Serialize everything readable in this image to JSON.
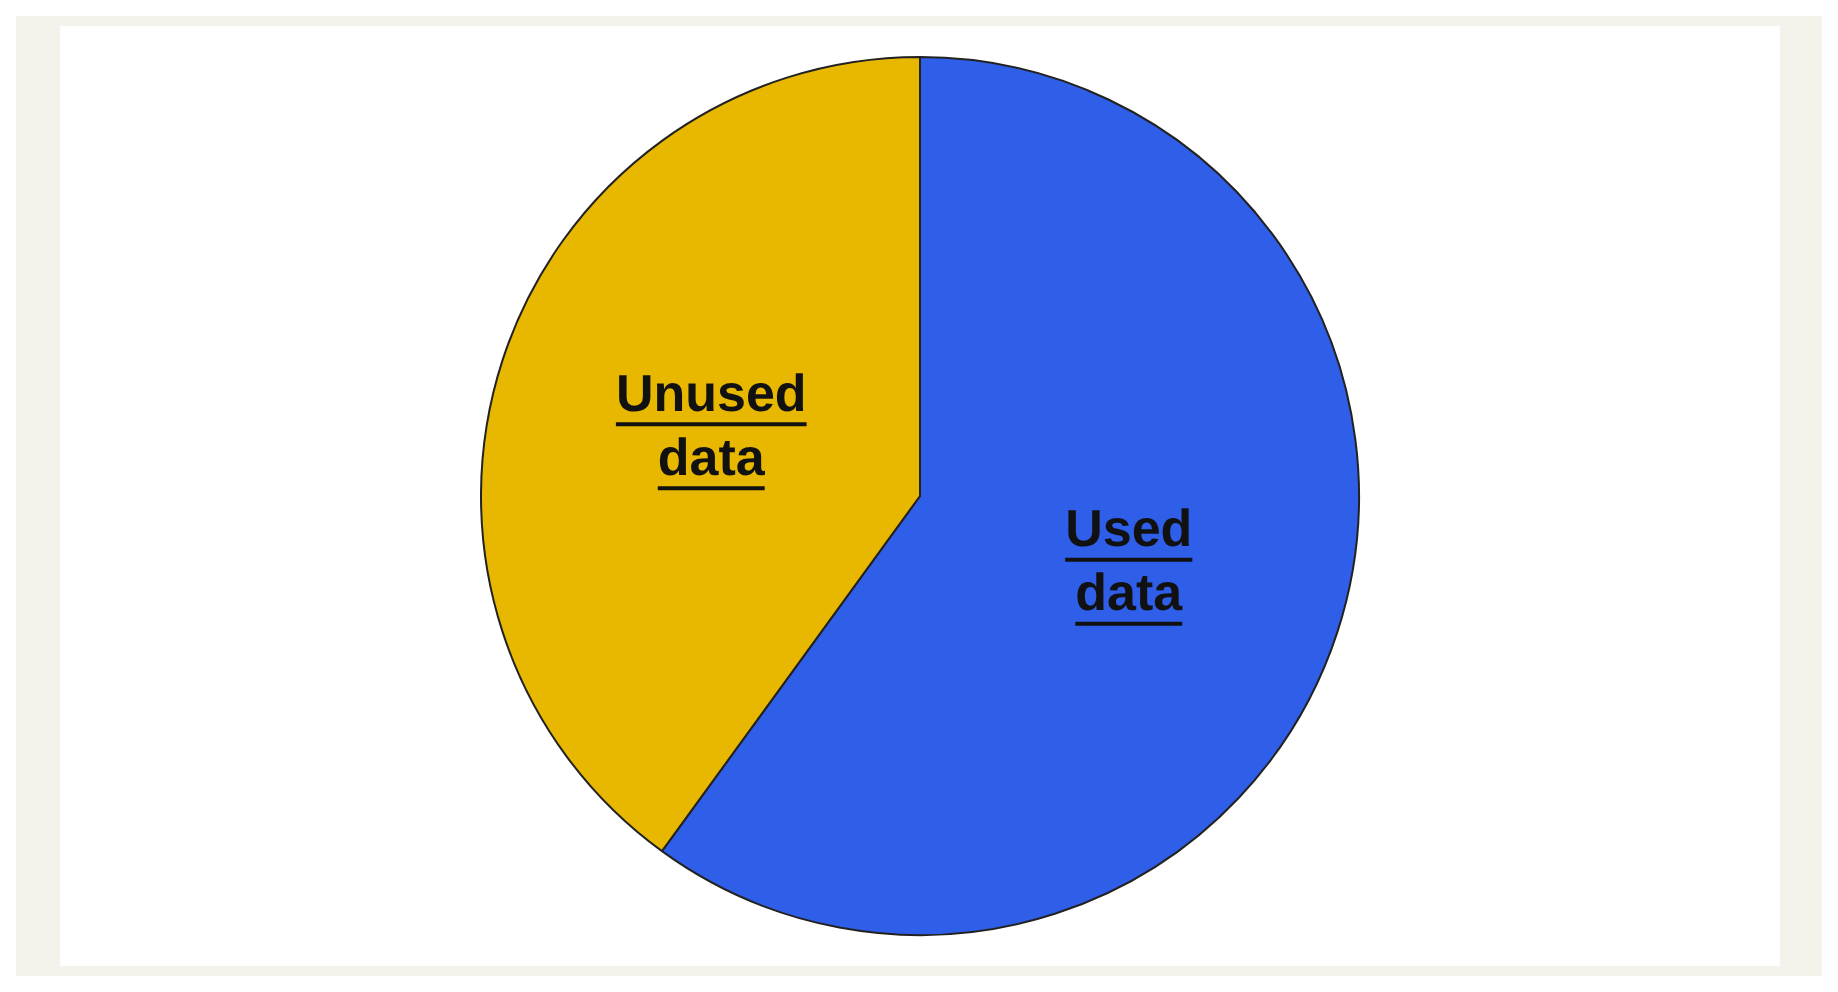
{
  "chart_data": {
    "type": "pie",
    "categories": [
      "Used data",
      "Unused data"
    ],
    "values": [
      60,
      40
    ],
    "colors": [
      "#2f5fe8",
      "#e8b800"
    ],
    "legend": false
  }
}
